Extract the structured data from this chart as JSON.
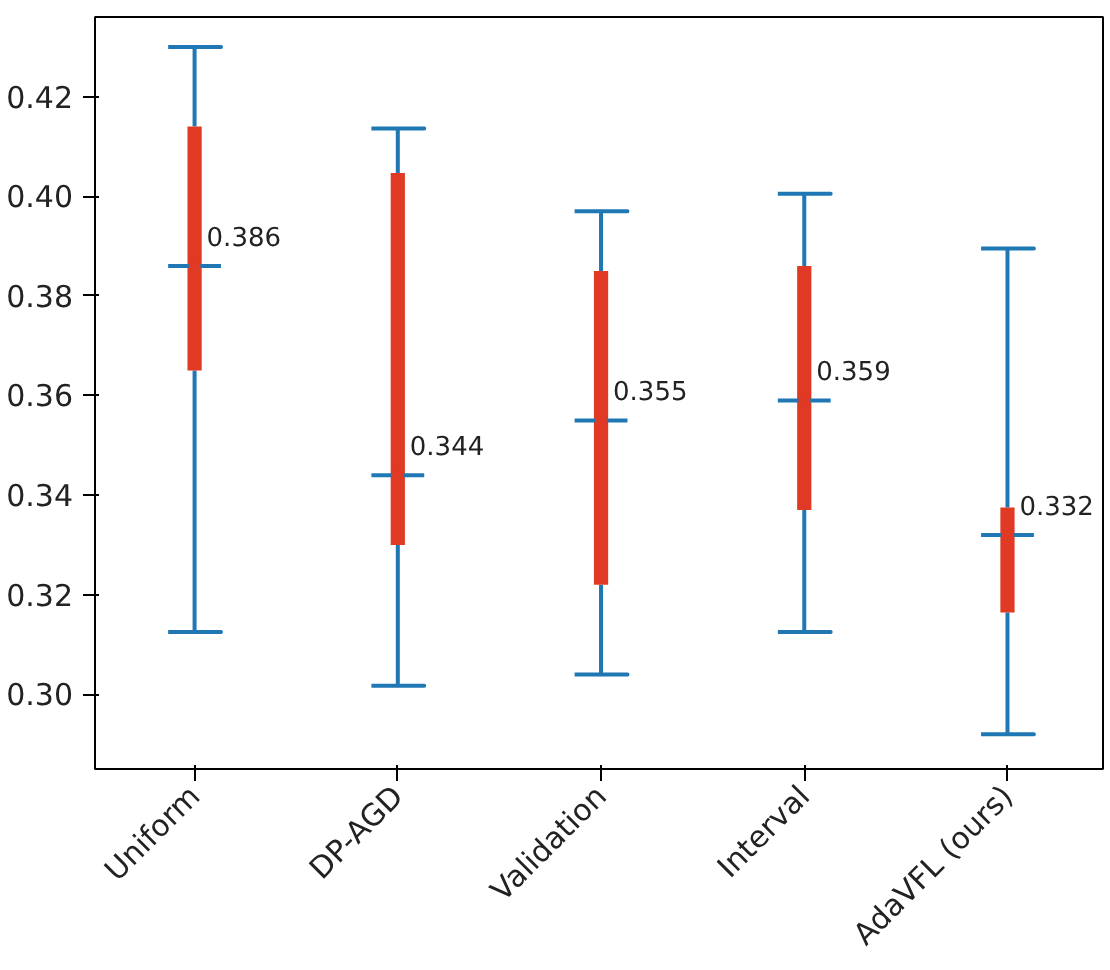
{
  "chart_data": {
    "type": "box",
    "categories": [
      "Uniform",
      "DP-AGD",
      "Validation",
      "Interval",
      "AdaVFL (ours)"
    ],
    "series": [
      {
        "color": "#e03a24",
        "boxes": [
          {
            "low": 0.3125,
            "q1": 0.365,
            "median": 0.386,
            "q3": 0.414,
            "high": 0.43
          },
          {
            "low": 0.3017,
            "q1": 0.33,
            "median": 0.344,
            "q3": 0.4047,
            "high": 0.4136
          },
          {
            "low": 0.304,
            "q1": 0.322,
            "median": 0.355,
            "q3": 0.385,
            "high": 0.397
          },
          {
            "low": 0.3125,
            "q1": 0.337,
            "median": 0.359,
            "q3": 0.386,
            "high": 0.4005
          },
          {
            "low": 0.292,
            "q1": 0.3164,
            "median": 0.332,
            "q3": 0.3375,
            "high": 0.3895
          }
        ]
      }
    ],
    "ylim": [
      0.285,
      0.436
    ],
    "yticks": [
      {
        "value": 0.3,
        "label": "0.30"
      },
      {
        "value": 0.32,
        "label": "0.32"
      },
      {
        "value": 0.34,
        "label": "0.34"
      },
      {
        "value": 0.36,
        "label": "0.36"
      },
      {
        "value": 0.38,
        "label": "0.38"
      },
      {
        "value": 0.4,
        "label": "0.40"
      },
      {
        "value": 0.42,
        "label": "0.42"
      }
    ],
    "annotations": [
      {
        "text": "0.386",
        "x": "Uniform",
        "y": 0.386
      },
      {
        "text": "0.344",
        "x": "DP-AGD",
        "y": 0.344
      },
      {
        "text": "0.355",
        "x": "Validation",
        "y": 0.355
      },
      {
        "text": "0.359",
        "x": "Interval",
        "y": 0.359
      },
      {
        "text": "0.332",
        "x": "AdaVFL (ours)",
        "y": 0.332
      }
    ],
    "grid": false
  }
}
